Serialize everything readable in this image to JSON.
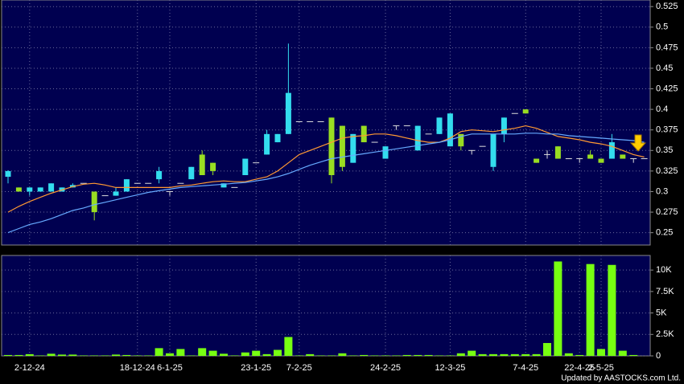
{
  "chart_data": [
    {
      "type": "candlestick",
      "categories": [
        null,
        null,
        "2-12-24",
        null,
        null,
        null,
        null,
        null,
        null,
        null,
        null,
        null,
        "18-12-24",
        null,
        null,
        "6-1-25",
        null,
        null,
        null,
        null,
        null,
        null,
        null,
        "23-1-25",
        null,
        null,
        null,
        "7-2-25",
        null,
        null,
        null,
        null,
        null,
        null,
        null,
        "24-2-25",
        null,
        null,
        null,
        null,
        null,
        "12-3-25",
        null,
        null,
        null,
        null,
        null,
        null,
        "7-4-25",
        null,
        null,
        null,
        null,
        "22-4-25",
        null,
        "2-5-25",
        null,
        null,
        null,
        null
      ],
      "open": [
        0.318,
        0.305,
        0.3,
        0.3,
        0.3,
        0.3,
        0.305,
        0.31,
        0.3,
        0.295,
        0.295,
        0.3,
        0.31,
        0.31,
        0.315,
        0.3,
        0.31,
        0.315,
        0.345,
        0.335,
        0.305,
        0.305,
        0.32,
        0.335,
        0.345,
        0.36,
        0.37,
        0.385,
        0.385,
        0.385,
        0.39,
        0.38,
        0.335,
        0.38,
        0.36,
        0.34,
        0.38,
        0.38,
        0.35,
        0.37,
        0.37,
        0.355,
        0.37,
        0.35,
        0.355,
        0.33,
        0.37,
        0.395,
        0.4,
        0.34,
        0.345,
        0.355,
        0.34,
        0.34,
        0.345,
        0.34,
        0.34,
        0.345,
        0.34,
        0.34
      ],
      "high": [
        0.326,
        0.305,
        0.305,
        0.305,
        0.31,
        0.305,
        0.31,
        0.31,
        0.3,
        0.295,
        0.305,
        0.315,
        0.31,
        0.31,
        0.33,
        0.3,
        0.31,
        0.33,
        0.35,
        0.335,
        0.31,
        0.305,
        0.34,
        0.335,
        0.375,
        0.37,
        0.48,
        0.385,
        0.385,
        0.385,
        0.39,
        0.38,
        0.37,
        0.38,
        0.36,
        0.355,
        0.38,
        0.38,
        0.38,
        0.37,
        0.39,
        0.395,
        0.37,
        0.35,
        0.355,
        0.37,
        0.39,
        0.395,
        0.4,
        0.34,
        0.35,
        0.355,
        0.34,
        0.34,
        0.35,
        0.34,
        0.37,
        0.345,
        0.34,
        0.34
      ],
      "low": [
        0.31,
        0.3,
        0.295,
        0.3,
        0.3,
        0.3,
        0.305,
        0.31,
        0.265,
        0.295,
        0.295,
        0.3,
        0.31,
        0.31,
        0.31,
        0.295,
        0.31,
        0.315,
        0.32,
        0.32,
        0.305,
        0.305,
        0.32,
        0.335,
        0.345,
        0.36,
        0.37,
        0.385,
        0.385,
        0.385,
        0.31,
        0.325,
        0.335,
        0.36,
        0.36,
        0.34,
        0.375,
        0.38,
        0.35,
        0.37,
        0.37,
        0.355,
        0.35,
        0.345,
        0.355,
        0.325,
        0.36,
        0.395,
        0.395,
        0.335,
        0.34,
        0.34,
        0.34,
        0.335,
        0.34,
        0.335,
        0.34,
        0.34,
        0.335,
        0.34
      ],
      "close": [
        0.325,
        0.3,
        0.305,
        0.305,
        0.31,
        0.305,
        0.308,
        0.31,
        0.275,
        0.295,
        0.3,
        0.315,
        0.31,
        0.31,
        0.325,
        0.3,
        0.31,
        0.33,
        0.32,
        0.325,
        0.31,
        0.305,
        0.34,
        0.335,
        0.37,
        0.37,
        0.42,
        0.385,
        0.385,
        0.385,
        0.32,
        0.33,
        0.37,
        0.36,
        0.36,
        0.355,
        0.38,
        0.38,
        0.38,
        0.37,
        0.39,
        0.395,
        0.355,
        0.35,
        0.355,
        0.37,
        0.39,
        0.395,
        0.395,
        0.335,
        0.345,
        0.34,
        0.34,
        0.34,
        0.34,
        0.335,
        0.36,
        0.34,
        0.34,
        0.34
      ],
      "up_color": "#33ddee",
      "down_color": "#99dd22",
      "doji_color": "#dddddd",
      "lines": [
        {
          "color": "#ff9933",
          "values": [
            0.275,
            0.282,
            0.288,
            0.293,
            0.298,
            0.302,
            0.306,
            0.309,
            0.31,
            0.308,
            0.305,
            0.305,
            0.305,
            0.305,
            0.305,
            0.305,
            0.307,
            0.308,
            0.31,
            0.312,
            0.313,
            0.312,
            0.312,
            0.315,
            0.318,
            0.325,
            0.335,
            0.345,
            0.35,
            0.355,
            0.36,
            0.365,
            0.367,
            0.368,
            0.37,
            0.37,
            0.368,
            0.365,
            0.362,
            0.36,
            0.36,
            0.365,
            0.373,
            0.375,
            0.374,
            0.373,
            0.375,
            0.377,
            0.38,
            0.377,
            0.372,
            0.367,
            0.365,
            0.363,
            0.36,
            0.358,
            0.355,
            0.35,
            0.345,
            0.342
          ]
        },
        {
          "color": "#66aaff",
          "values": [
            0.25,
            0.255,
            0.26,
            0.263,
            0.267,
            0.272,
            0.277,
            0.28,
            0.284,
            0.287,
            0.29,
            0.293,
            0.296,
            0.299,
            0.301,
            0.303,
            0.305,
            0.306,
            0.307,
            0.308,
            0.309,
            0.31,
            0.311,
            0.313,
            0.315,
            0.318,
            0.322,
            0.327,
            0.332,
            0.336,
            0.34,
            0.342,
            0.344,
            0.346,
            0.348,
            0.35,
            0.352,
            0.354,
            0.356,
            0.358,
            0.36,
            0.363,
            0.367,
            0.37,
            0.37,
            0.37,
            0.37,
            0.37,
            0.371,
            0.371,
            0.37,
            0.37,
            0.368,
            0.367,
            0.366,
            0.365,
            0.364,
            0.363,
            0.362,
            0.36
          ]
        }
      ],
      "ylim": [
        0.235,
        0.533
      ],
      "yticks": [
        0.25,
        0.275,
        0.3,
        0.325,
        0.35,
        0.375,
        0.4,
        0.425,
        0.45,
        0.475,
        0.5,
        0.525
      ],
      "grid": true
    },
    {
      "type": "bar",
      "values": [
        100,
        100,
        200,
        50,
        250,
        150,
        150,
        50,
        50,
        50,
        150,
        100,
        50,
        50,
        900,
        300,
        800,
        50,
        900,
        600,
        250,
        50,
        400,
        600,
        200,
        700,
        2200,
        50,
        200,
        50,
        50,
        300,
        50,
        100,
        50,
        50,
        50,
        100,
        100,
        100,
        50,
        50,
        300,
        600,
        200,
        200,
        200,
        200,
        200,
        200,
        1500,
        11000,
        300,
        100,
        10700,
        800,
        10600,
        600,
        100,
        0
      ],
      "color": "#77ff11",
      "ylim": [
        0,
        11700
      ],
      "yticks": [
        0,
        {
          "value": 2500,
          "label": "2.5K"
        },
        {
          "value": 5000,
          "label": "5K"
        },
        {
          "value": 7500,
          "label": "7.5K"
        },
        {
          "value": 10000,
          "label": "10K"
        }
      ],
      "grid": true
    }
  ],
  "footer": "Updated by AASTOCKS.com Ltd."
}
